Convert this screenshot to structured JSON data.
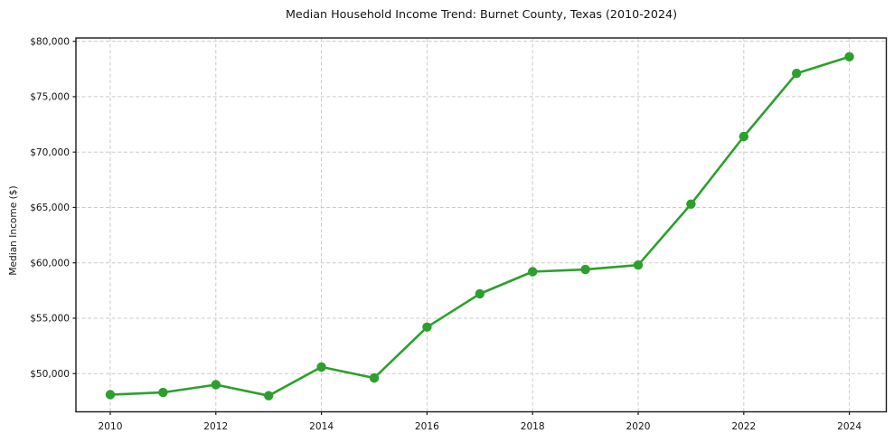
{
  "chart_data": {
    "type": "line",
    "title": "Median Household Income Trend: Burnet County, Texas (2010-2024)",
    "xlabel": "",
    "ylabel": "Median Income ($)",
    "x": [
      2010,
      2011,
      2012,
      2013,
      2014,
      2015,
      2016,
      2017,
      2018,
      2019,
      2020,
      2021,
      2022,
      2023,
      2024
    ],
    "values": [
      48100,
      48300,
      49000,
      48000,
      50600,
      49600,
      54200,
      57200,
      59200,
      59400,
      59800,
      65300,
      71400,
      77100,
      78600
    ],
    "xticks": [
      2010,
      2012,
      2014,
      2016,
      2018,
      2020,
      2022,
      2024
    ],
    "xtick_labels": [
      "2010",
      "2012",
      "2014",
      "2016",
      "2018",
      "2020",
      "2022",
      "2024"
    ],
    "yticks": [
      50000,
      55000,
      60000,
      65000,
      70000,
      75000,
      80000
    ],
    "ytick_labels": [
      "$50,000",
      "$55,000",
      "$60,000",
      "$65,000",
      "$70,000",
      "$75,000",
      "$80,000"
    ],
    "xlim": [
      2009.35,
      2024.7
    ],
    "ylim": [
      46550,
      80300
    ],
    "grid": true,
    "grid_style": "dashed",
    "legend": "none",
    "line_color": "#2ca02c",
    "marker": "circle",
    "grid_color": "#cbcbcb",
    "axis_color": "#1a1a1a",
    "tick_label_color": "#141414",
    "plot_background": "#ffffff"
  }
}
